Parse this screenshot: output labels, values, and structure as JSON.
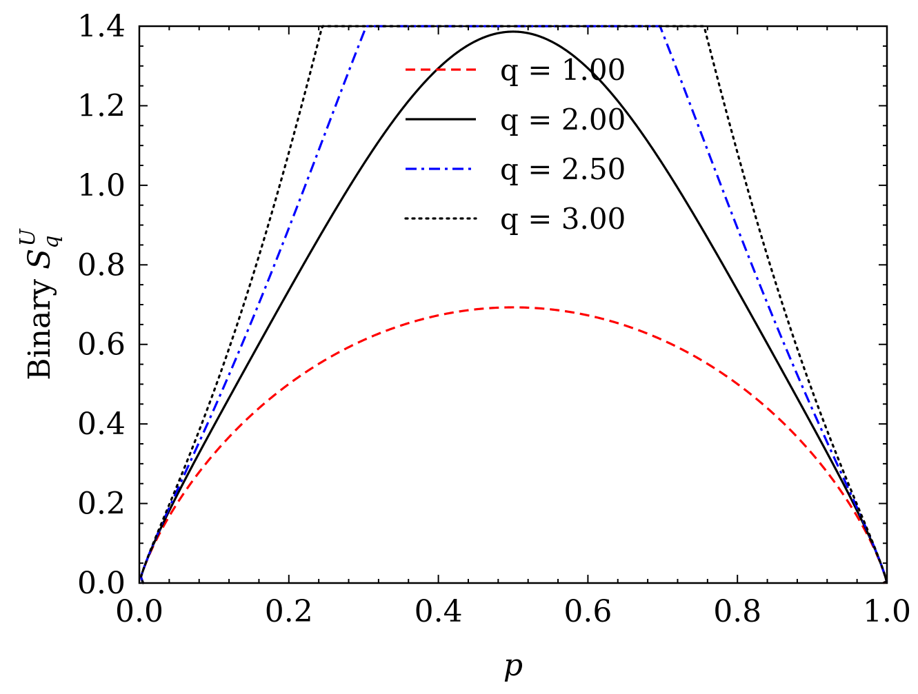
{
  "chart_data": {
    "type": "line",
    "title": "",
    "xlabel": "p",
    "ylabel": "Binary S_q^U",
    "ylabel_prefix": "Binary ",
    "ylabel_symbol": "S",
    "ylabel_sub": "q",
    "ylabel_sup": "U",
    "xlim": [
      0.0,
      1.0
    ],
    "ylim": [
      0.0,
      1.4
    ],
    "xticks": [
      "0.0",
      "0.2",
      "0.4",
      "0.6",
      "0.8",
      "1.0"
    ],
    "yticks": [
      "0.0",
      "0.2",
      "0.4",
      "0.6",
      "0.8",
      "1.0",
      "1.2",
      "1.4"
    ],
    "legend_position": "top-center",
    "series": [
      {
        "name": "q = 1.00",
        "q": 1.0,
        "color": "#ff0000",
        "style": "dashed"
      },
      {
        "name": "q = 2.00",
        "q": 2.0,
        "color": "#000000",
        "style": "solid"
      },
      {
        "name": "q = 2.50",
        "q": 2.5,
        "color": "#0000ff",
        "style": "dashdot"
      },
      {
        "name": "q = 3.00",
        "q": 3.0,
        "color": "#000000",
        "style": "dotted"
      }
    ]
  }
}
